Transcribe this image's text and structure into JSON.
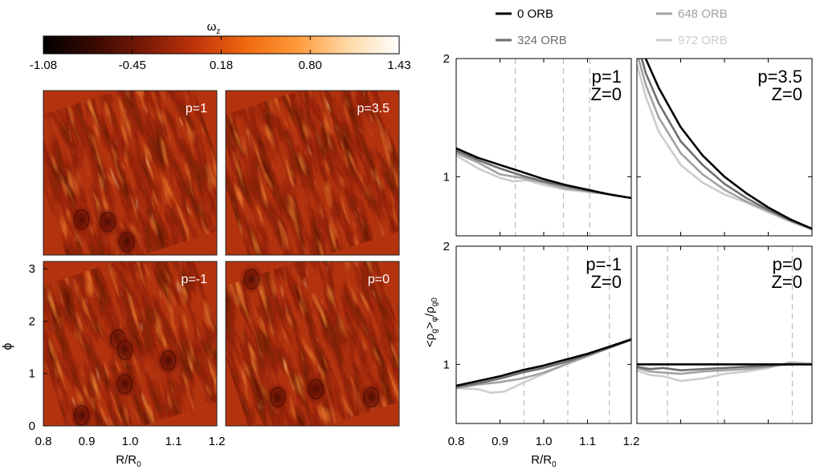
{
  "colorbar": {
    "label": "ω",
    "label_sub": "z",
    "ticks": [
      "-1.08",
      "-0.45",
      "0.18",
      "0.80",
      "1.43"
    ],
    "range": [
      -1.08,
      1.43
    ],
    "colors": [
      "#000000",
      "#3a0a02",
      "#7a1a05",
      "#c0340b",
      "#f06a10",
      "#ff9a3a",
      "#ffd9a8",
      "#ffffff"
    ]
  },
  "vorticity_maps": {
    "panels": [
      {
        "label": "p=1",
        "vortices": [
          [
            0.22,
            0.68
          ],
          [
            0.37,
            0.63
          ],
          [
            0.48,
            0.25
          ]
        ]
      },
      {
        "label": "p=3.5",
        "vortices": []
      },
      {
        "label": "p=-1",
        "vortices": [
          [
            0.22,
            0.2
          ],
          [
            0.43,
            1.65
          ],
          [
            0.47,
            0.8
          ],
          [
            0.47,
            1.45
          ],
          [
            0.72,
            1.25
          ]
        ]
      },
      {
        "label": "p=0",
        "vortices": [
          [
            0.15,
            2.8
          ],
          [
            0.3,
            0.55
          ],
          [
            0.52,
            0.7
          ],
          [
            0.84,
            0.55
          ]
        ]
      }
    ],
    "xlabel": "R/R",
    "xlabel_sub": "0",
    "ylabel": "ϕ",
    "xticks": [
      "0.8",
      "0.9",
      "1.0",
      "1.1",
      "1.2"
    ],
    "yticks": [
      "0",
      "1",
      "2",
      "3"
    ],
    "colors": {
      "base": "#b3330e",
      "dark": "#6a1406",
      "light": "#f27a1c",
      "bright": "#ffb566"
    }
  },
  "legend": {
    "entries": [
      {
        "label": "0 ORB",
        "color": "#000000"
      },
      {
        "label": "324 ORB",
        "color": "#6e6e6e"
      },
      {
        "label": "648 ORB",
        "color": "#a2a2a2"
      },
      {
        "label": "972 ORB",
        "color": "#cdcdcd"
      }
    ]
  },
  "chart_data": {
    "type": "line",
    "xlabel": "R/R",
    "xlabel_sub": "0",
    "ylabel": "<ρ",
    "ylabel_parts": {
      "g": "g",
      "phi": "φ",
      "mid": ">",
      "slash": "/ρ",
      "g0": "g0"
    },
    "xticks": [
      "0.8",
      "0.9",
      "1.0",
      "1.1",
      "1.2"
    ],
    "yticks": [
      "1",
      "2"
    ],
    "xlim": [
      0.8,
      1.2
    ],
    "ylim": [
      0.5,
      2.0
    ],
    "panels": [
      {
        "label": "p=1",
        "sublabel": "Z=0",
        "vlines": [
          0.935,
          1.045,
          1.105
        ],
        "series": [
          {
            "name": "0 ORB",
            "x": [
              0.8,
              0.85,
              0.9,
              0.95,
              1.0,
              1.05,
              1.1,
              1.15,
              1.2
            ],
            "y": [
              1.24,
              1.16,
              1.1,
              1.04,
              0.98,
              0.93,
              0.89,
              0.85,
              0.82
            ]
          },
          {
            "name": "324 ORB",
            "x": [
              0.8,
              0.85,
              0.9,
              0.95,
              1.0,
              1.05,
              1.1,
              1.15,
              1.2
            ],
            "y": [
              1.22,
              1.14,
              1.07,
              1.01,
              0.96,
              0.92,
              0.88,
              0.85,
              0.82
            ]
          },
          {
            "name": "648 ORB",
            "x": [
              0.8,
              0.85,
              0.9,
              0.95,
              1.0,
              1.05,
              1.1,
              1.15,
              1.2
            ],
            "y": [
              1.2,
              1.12,
              1.02,
              0.99,
              0.95,
              0.9,
              0.88,
              0.85,
              0.82
            ]
          },
          {
            "name": "972 ORB",
            "x": [
              0.8,
              0.85,
              0.9,
              0.93,
              0.96,
              1.0,
              1.05,
              1.1,
              1.15,
              1.2
            ],
            "y": [
              1.18,
              1.07,
              0.99,
              0.96,
              0.97,
              0.93,
              0.89,
              0.87,
              0.85,
              0.82
            ]
          }
        ]
      },
      {
        "label": "p=3.5",
        "sublabel": "Z=0",
        "vlines": [],
        "series": [
          {
            "name": "0 ORB",
            "x": [
              0.8,
              0.82,
              0.85,
              0.9,
              0.95,
              1.0,
              1.05,
              1.1,
              1.15,
              1.2
            ],
            "y": [
              2.3,
              2.0,
              1.75,
              1.42,
              1.18,
              1.0,
              0.86,
              0.74,
              0.64,
              0.56
            ]
          },
          {
            "name": "324 ORB",
            "x": [
              0.8,
              0.82,
              0.85,
              0.9,
              0.95,
              1.0,
              1.05,
              1.1,
              1.15,
              1.2
            ],
            "y": [
              2.15,
              1.88,
              1.62,
              1.3,
              1.1,
              0.94,
              0.82,
              0.72,
              0.63,
              0.56
            ]
          },
          {
            "name": "648 ORB",
            "x": [
              0.8,
              0.82,
              0.85,
              0.9,
              0.95,
              1.0,
              1.05,
              1.1,
              1.15,
              1.2
            ],
            "y": [
              2.05,
              1.78,
              1.5,
              1.2,
              1.02,
              0.89,
              0.79,
              0.71,
              0.63,
              0.56
            ]
          },
          {
            "name": "972 ORB",
            "x": [
              0.8,
              0.82,
              0.85,
              0.9,
              0.95,
              1.0,
              1.05,
              1.1,
              1.15,
              1.2
            ],
            "y": [
              1.95,
              1.68,
              1.38,
              1.1,
              0.95,
              0.85,
              0.78,
              0.7,
              0.62,
              0.55
            ]
          }
        ]
      },
      {
        "label": "p=-1",
        "sublabel": "Z=0",
        "vlines": [
          0.955,
          1.055,
          1.15
        ],
        "series": [
          {
            "name": "0 ORB",
            "x": [
              0.8,
              0.85,
              0.9,
              0.95,
              1.0,
              1.05,
              1.1,
              1.15,
              1.2
            ],
            "y": [
              0.82,
              0.86,
              0.9,
              0.95,
              0.99,
              1.04,
              1.09,
              1.15,
              1.21
            ]
          },
          {
            "name": "324 ORB",
            "x": [
              0.8,
              0.85,
              0.9,
              0.95,
              1.0,
              1.05,
              1.1,
              1.15,
              1.2
            ],
            "y": [
              0.81,
              0.84,
              0.88,
              0.93,
              0.97,
              1.02,
              1.08,
              1.14,
              1.21
            ]
          },
          {
            "name": "648 ORB",
            "x": [
              0.8,
              0.85,
              0.9,
              0.95,
              1.0,
              1.05,
              1.1,
              1.15,
              1.2
            ],
            "y": [
              0.8,
              0.83,
              0.85,
              0.88,
              0.93,
              1.0,
              1.07,
              1.14,
              1.21
            ]
          },
          {
            "name": "972 ORB",
            "x": [
              0.8,
              0.85,
              0.88,
              0.91,
              0.95,
              1.0,
              1.05,
              1.1,
              1.15,
              1.2
            ],
            "y": [
              0.8,
              0.79,
              0.76,
              0.77,
              0.84,
              0.92,
              1.0,
              1.08,
              1.15,
              1.22
            ]
          }
        ]
      },
      {
        "label": "p=0",
        "sublabel": "Z=0",
        "vlines": [
          0.87,
          0.985,
          1.155
        ],
        "series": [
          {
            "name": "0 ORB",
            "x": [
              0.8,
              0.9,
              1.0,
              1.1,
              1.2
            ],
            "y": [
              1.0,
              1.0,
              1.0,
              1.0,
              1.0
            ]
          },
          {
            "name": "324 ORB",
            "x": [
              0.8,
              0.83,
              0.86,
              0.9,
              0.95,
              1.0,
              1.05,
              1.1,
              1.15,
              1.2
            ],
            "y": [
              0.98,
              0.96,
              0.97,
              0.95,
              0.96,
              0.97,
              0.98,
              0.99,
              1.0,
              1.0
            ]
          },
          {
            "name": "648 ORB",
            "x": [
              0.8,
              0.83,
              0.86,
              0.9,
              0.95,
              1.0,
              1.05,
              1.1,
              1.15,
              1.2
            ],
            "y": [
              0.97,
              0.94,
              0.93,
              0.92,
              0.94,
              0.95,
              0.96,
              0.98,
              1.01,
              1.0
            ]
          },
          {
            "name": "972 ORB",
            "x": [
              0.8,
              0.83,
              0.86,
              0.9,
              0.95,
              1.0,
              1.05,
              1.1,
              1.15,
              1.2
            ],
            "y": [
              0.95,
              0.91,
              0.9,
              0.86,
              0.88,
              0.92,
              0.94,
              0.97,
              1.02,
              1.01
            ]
          }
        ]
      }
    ]
  }
}
